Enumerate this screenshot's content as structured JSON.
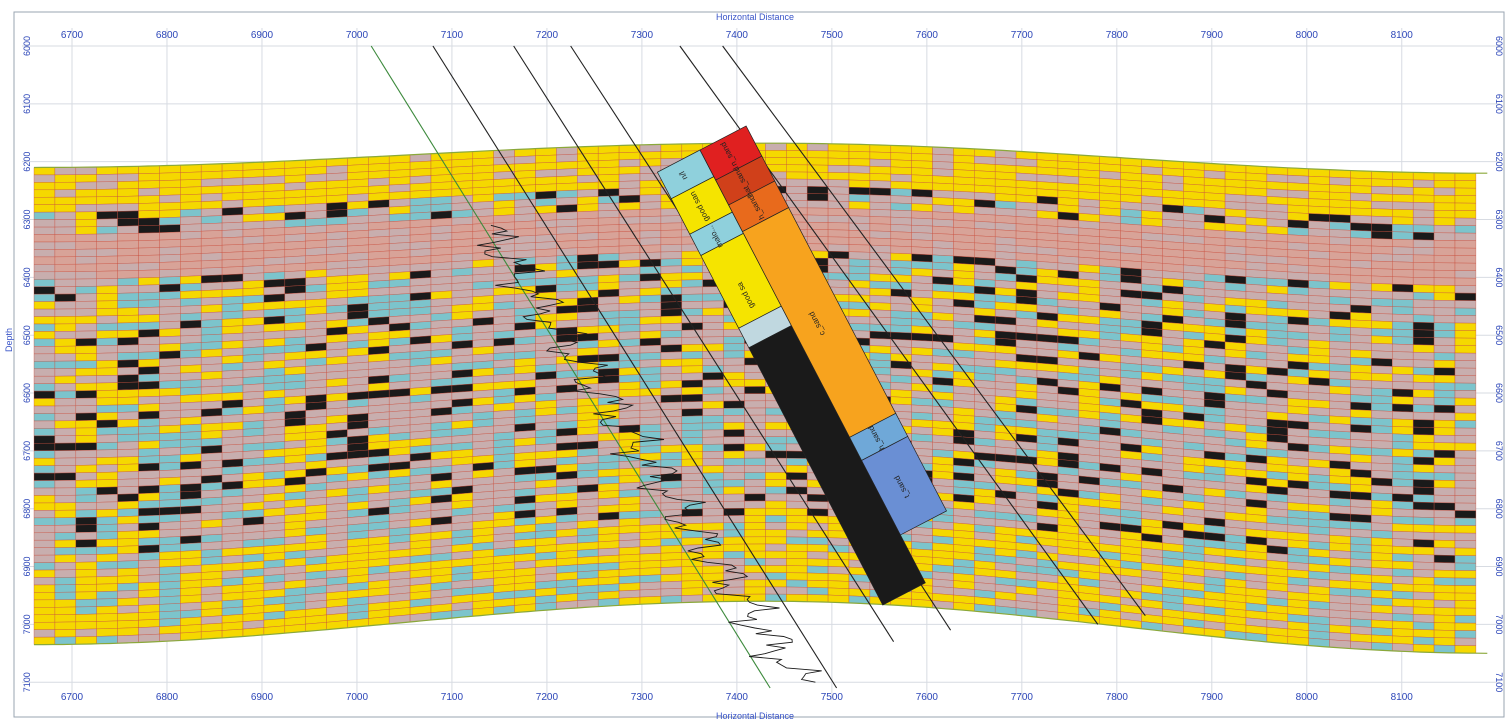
{
  "chart_data": {
    "type": "cross-section",
    "xlabel_top": "Horizontal Distance",
    "xlabel_bottom": "Horizontal Distance",
    "ylabel": "Depth",
    "xlim": [
      6660,
      8195
    ],
    "ylim": [
      6000,
      7110
    ],
    "x_ticks": [
      6700,
      6800,
      6900,
      7000,
      7100,
      7200,
      7300,
      7400,
      7500,
      7600,
      7700,
      7800,
      7900,
      8000,
      8100
    ],
    "y_ticks": [
      6000,
      6100,
      6200,
      6300,
      6400,
      6500,
      6600,
      6700,
      6800,
      6900,
      7000,
      7100
    ],
    "grid": true,
    "section_top_depth": {
      "x": [
        6660,
        7430,
        8195
      ],
      "depth": [
        6210,
        6168,
        6220
      ]
    },
    "section_bottom_depth": {
      "x": [
        6660,
        7430,
        8195
      ],
      "depth": [
        7035,
        6960,
        7050
      ]
    },
    "facies_colors": {
      "sand": "#f5d800",
      "silt": "#7cc4cc",
      "shale": "#c8aeae",
      "coal": "#1a1a1a"
    },
    "column_upper_labels": [
      "n/l",
      "good san",
      "malo...",
      "good sa"
    ],
    "column_right_labels": [
      "n_sand",
      "hat_sand",
      "h_sand",
      "c_sand",
      "h_sand",
      "t_sand"
    ],
    "column_right_colors": [
      "#e02020",
      "#d0401a",
      "#e86a1c",
      "#f7a31e",
      "#6fa8d8",
      "#6a8fd4"
    ]
  }
}
